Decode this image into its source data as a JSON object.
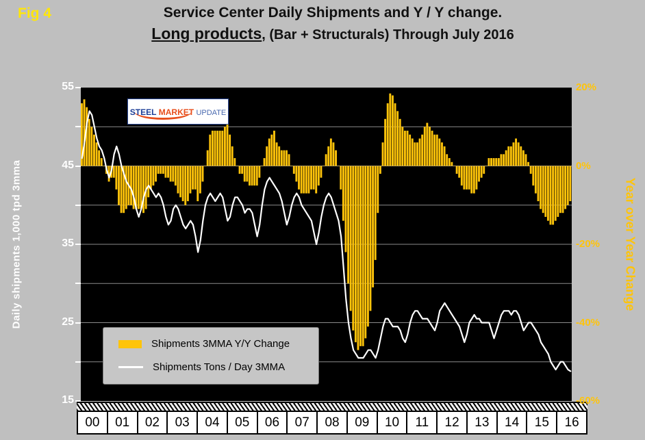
{
  "fig_label": "Fig 4",
  "title": {
    "line1": "Service Center Daily Shipments and Y / Y change.",
    "line2_emphasis": "Long products",
    "line2_rest": ", (Bar + Structurals) Through July 2016"
  },
  "logo": {
    "steel": "STEEL",
    "market": "MARKET",
    "update": "UPDATE"
  },
  "legend": {
    "items": [
      {
        "swatch": "bar",
        "label": "Shipments 3MMA Y/Y Change"
      },
      {
        "swatch": "line",
        "label": "Shipments Tons / Day 3MMA"
      }
    ]
  },
  "colors": {
    "background": "#BFBFBF",
    "plot_background": "#000000",
    "bar": "#FFC40A",
    "line": "#FFFFFF",
    "gridline": "#8C8C8C",
    "left_axis_text": "#FFFFFF",
    "right_axis_text": "#FFC40A",
    "fig_label": "#FFE60A",
    "year_band_background": "#FFFFFF"
  },
  "chart_data": {
    "type": "bar+line",
    "title": "Service Center Daily Shipments and Y / Y change. Long products, (Bar + Structurals) Through July 2016",
    "x_frequency": "monthly",
    "x_start": "2000-01",
    "x_end": "2016-07",
    "x_tick_labels": [
      "00",
      "01",
      "02",
      "03",
      "04",
      "05",
      "06",
      "07",
      "08",
      "09",
      "10",
      "11",
      "12",
      "13",
      "14",
      "15",
      "16"
    ],
    "left_axis": {
      "label": "Daily shipments 1,000 tpd 3mma",
      "range": [
        15,
        55
      ],
      "ticks": [
        55,
        45,
        35,
        25,
        15
      ]
    },
    "right_axis": {
      "label": "Year over Year Change",
      "range": [
        -60,
        20
      ],
      "ticks": [
        {
          "label": "20%",
          "value": 20
        },
        {
          "label": "0%",
          "value": 0
        },
        {
          "label": "-20%",
          "value": -20
        },
        {
          "label": "-40%",
          "value": -40
        },
        {
          "label": "-60%",
          "value": -60
        }
      ]
    },
    "gridline_values_left_axis": [
      20,
      25,
      30,
      35,
      40,
      45,
      50
    ],
    "zero_line_left_axis_value": 45,
    "series": [
      {
        "name": "Shipments 3MMA Y/Y Change",
        "type": "bar",
        "axis": "right",
        "unit": "%",
        "values": [
          16,
          17,
          15,
          12,
          10,
          8,
          6,
          4,
          2,
          0,
          -2,
          -4,
          -3,
          -3,
          -6,
          -10,
          -12,
          -12,
          -11,
          -10,
          -10,
          -11,
          -11,
          -11,
          -11,
          -12,
          -11,
          -8,
          -6,
          -5,
          -4,
          -2,
          -2,
          -2,
          -3,
          -3,
          -4,
          -4,
          -5,
          -7,
          -8,
          -9,
          -10,
          -9,
          -7,
          -6,
          -6,
          -9,
          -7,
          -4,
          0,
          4,
          8,
          9,
          9,
          9,
          9,
          9,
          10,
          12,
          8,
          5,
          2,
          0,
          -2,
          -2,
          -4,
          -4,
          -5,
          -5,
          -5,
          -5,
          -3,
          0,
          2,
          5,
          7,
          8,
          9,
          6,
          5,
          4,
          4,
          4,
          3,
          0,
          -2,
          -4,
          -6,
          -7,
          -7,
          -7,
          -7,
          -6,
          -6,
          -7,
          -5,
          -3,
          0,
          3,
          5,
          7,
          6,
          4,
          0,
          -6,
          -14,
          -22,
          -30,
          -37,
          -42,
          -45,
          -47,
          -46,
          -46,
          -44,
          -41,
          -37,
          -31,
          -24,
          -12,
          -2,
          6,
          12,
          16,
          18.5,
          18,
          16,
          14,
          12,
          10,
          9,
          9,
          8,
          7,
          6,
          6,
          7,
          8,
          10,
          11,
          10,
          9,
          8,
          8,
          7,
          6,
          5,
          3,
          2,
          1,
          0,
          -2,
          -3,
          -5,
          -6,
          -6,
          -6,
          -7,
          -7,
          -6,
          -4,
          -3,
          -2,
          0,
          2,
          2,
          2,
          2,
          2,
          3,
          3,
          4,
          5,
          5,
          6,
          7,
          6,
          5,
          4,
          3,
          1,
          -2,
          -5,
          -7,
          -9,
          -11,
          -12,
          -13,
          -14,
          -15,
          -15,
          -14,
          -13,
          -12,
          -12,
          -11,
          -10,
          -9
        ]
      },
      {
        "name": "Shipments Tons / Day 3MMA",
        "type": "line",
        "axis": "left",
        "unit": "1,000 tons per day",
        "values": [
          46.0,
          48.0,
          50.5,
          52.0,
          51.5,
          50.0,
          48.5,
          47.5,
          47.0,
          46.0,
          44.5,
          43.5,
          44.5,
          46.5,
          47.5,
          46.5,
          45.0,
          44.0,
          43.0,
          42.5,
          42.0,
          41.0,
          39.5,
          38.5,
          39.5,
          41.0,
          42.0,
          42.5,
          42.0,
          41.5,
          41.0,
          41.5,
          41.0,
          40.0,
          38.5,
          37.5,
          38.0,
          39.5,
          40.0,
          39.5,
          38.5,
          37.5,
          37.0,
          37.5,
          38.0,
          37.5,
          36.0,
          34.0,
          35.5,
          38.0,
          40.0,
          41.0,
          41.5,
          41.0,
          40.5,
          41.0,
          41.5,
          41.0,
          39.5,
          38.0,
          38.5,
          40.0,
          41.0,
          41.0,
          40.5,
          40.0,
          39.0,
          39.5,
          39.5,
          39.0,
          37.5,
          36.0,
          37.5,
          40.0,
          42.0,
          43.0,
          43.5,
          43.0,
          42.5,
          42.0,
          41.5,
          40.5,
          39.0,
          37.5,
          38.5,
          40.0,
          41.0,
          41.5,
          41.0,
          40.0,
          39.5,
          39.0,
          38.5,
          38.0,
          36.5,
          35.0,
          36.5,
          38.5,
          40.0,
          41.0,
          41.5,
          41.0,
          40.0,
          39.0,
          38.0,
          36.0,
          32.0,
          28.0,
          25.0,
          23.0,
          21.5,
          21.0,
          20.5,
          20.5,
          20.5,
          21.0,
          21.5,
          21.5,
          21.0,
          20.5,
          21.5,
          23.0,
          24.5,
          25.5,
          25.5,
          25.0,
          24.5,
          24.5,
          24.5,
          24.0,
          23.0,
          22.5,
          23.5,
          25.0,
          26.0,
          26.5,
          26.5,
          26.0,
          25.5,
          25.5,
          25.5,
          25.0,
          24.5,
          24.0,
          25.0,
          26.5,
          27.0,
          27.5,
          27.0,
          26.5,
          26.0,
          25.5,
          25.0,
          24.5,
          23.5,
          22.5,
          23.5,
          25.0,
          25.5,
          26.0,
          25.5,
          25.5,
          25.0,
          25.0,
          25.0,
          25.0,
          24.0,
          23.0,
          24.0,
          25.0,
          26.0,
          26.5,
          26.5,
          26.5,
          26.0,
          26.5,
          26.5,
          26.0,
          25.0,
          24.0,
          24.5,
          25.0,
          25.0,
          24.5,
          24.0,
          23.5,
          22.5,
          22.0,
          21.5,
          21.0,
          20.0,
          19.5,
          19.0,
          19.5,
          20.0,
          20.0,
          19.5,
          19.0,
          18.8
        ]
      }
    ]
  }
}
